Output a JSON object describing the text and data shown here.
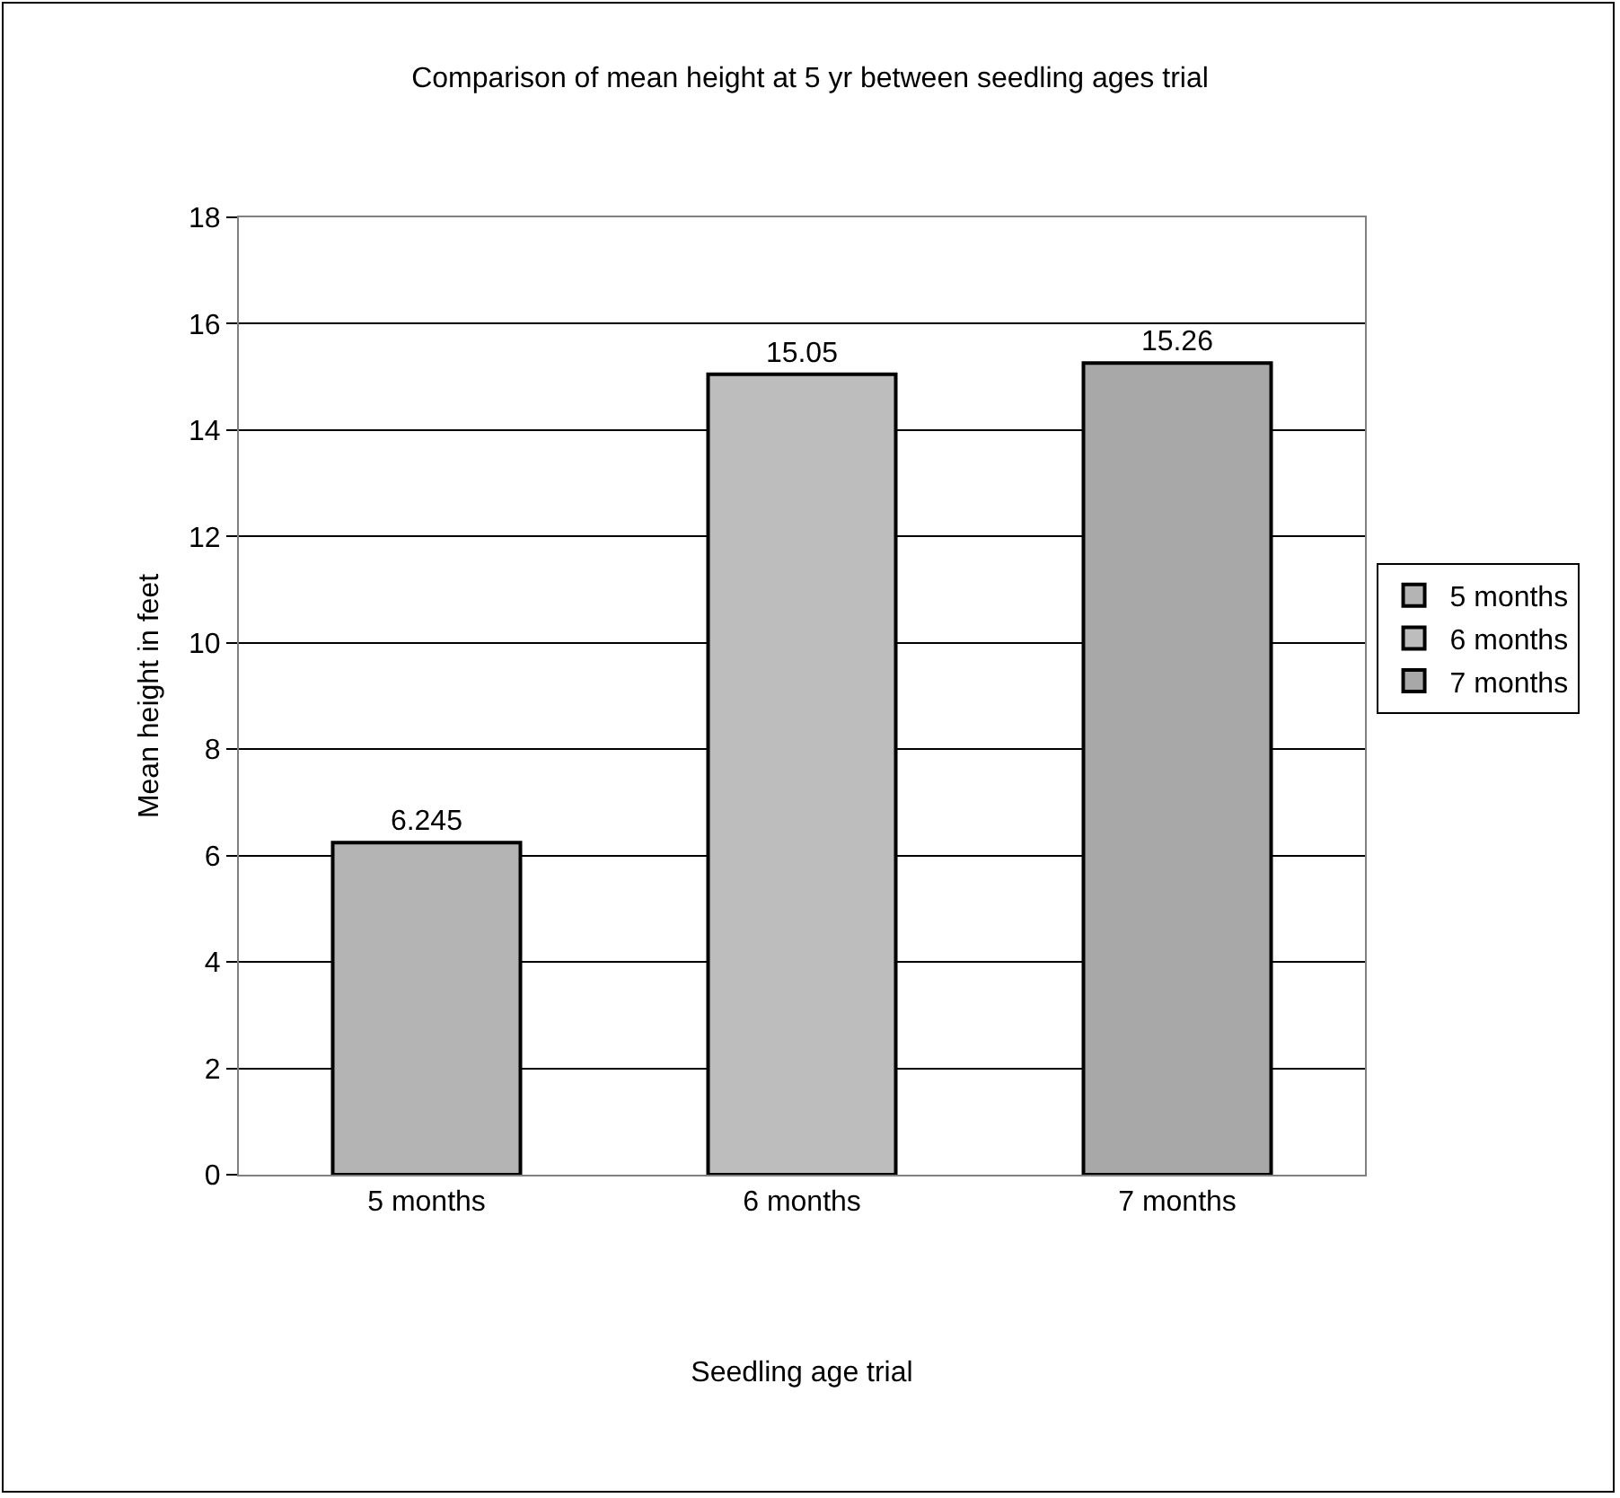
{
  "chart_data": {
    "type": "bar",
    "title": "Comparison of mean height at 5 yr between seedling ages trial",
    "xlabel": "Seedling age trial",
    "ylabel": "Mean height in feet",
    "categories": [
      "5 months",
      "6 months",
      "7 months"
    ],
    "series": [
      {
        "name": "5 months",
        "color": "#b4b4b4",
        "values": [
          6.245,
          null,
          null
        ]
      },
      {
        "name": "6 months",
        "color": "#bdbdbd",
        "values": [
          null,
          15.05,
          null
        ]
      },
      {
        "name": "7 months",
        "color": "#a8a8a8",
        "values": [
          null,
          null,
          15.26
        ]
      }
    ],
    "ylim": [
      0,
      18
    ],
    "yticks": [
      0,
      2,
      4,
      6,
      8,
      10,
      12,
      14,
      16,
      18
    ],
    "grid": "y",
    "legend": "right",
    "data_labels": true
  }
}
